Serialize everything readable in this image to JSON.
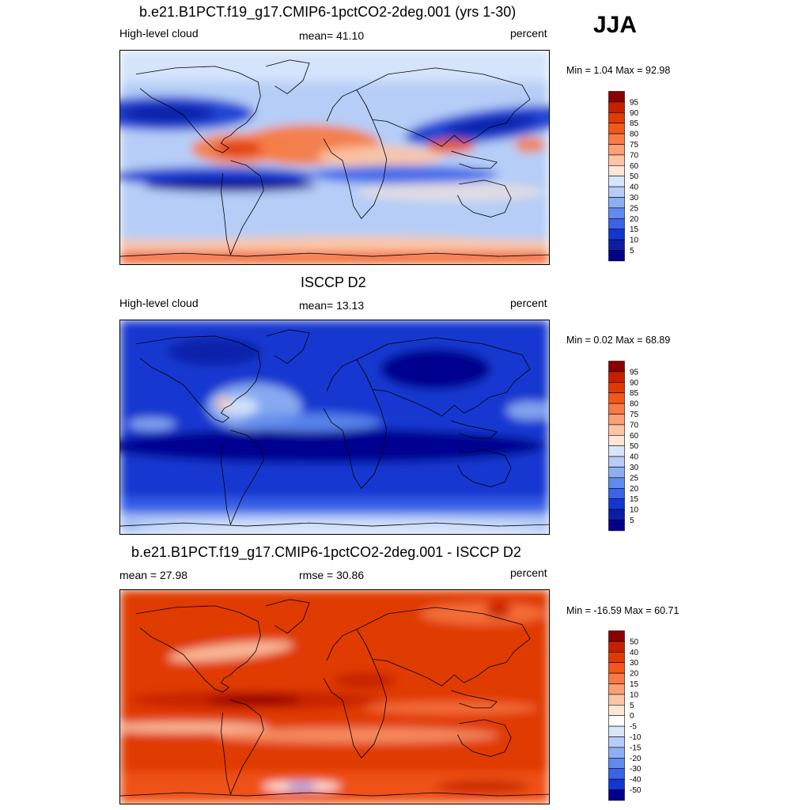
{
  "season": "JJA",
  "panels": [
    {
      "title": "b.e21.B1PCT.f19_g17.CMIP6-1pctCO2-2deg.001 (yrs 1-30)",
      "left": "High-level cloud",
      "center": "mean=  41.10",
      "right": "percent",
      "minmax": "Min =   1.04 Max =  92.98",
      "palette": "abs",
      "field": "model",
      "colorbar_labels": [
        "95",
        "90",
        "85",
        "80",
        "75",
        "70",
        "60",
        "50",
        "40",
        "30",
        "25",
        "20",
        "15",
        "10",
        "5"
      ]
    },
    {
      "title": "ISCCP D2",
      "left": "High-level cloud",
      "center": "mean=  13.13",
      "right": "percent",
      "minmax": "Min =   0.02 Max =  68.89",
      "palette": "abs",
      "field": "obs",
      "colorbar_labels": [
        "95",
        "90",
        "85",
        "80",
        "75",
        "70",
        "60",
        "50",
        "40",
        "30",
        "25",
        "20",
        "15",
        "10",
        "5"
      ]
    },
    {
      "title": "b.e21.B1PCT.f19_g17.CMIP6-1pctCO2-2deg.001 - ISCCP D2",
      "left": "mean =  27.98",
      "center": "rmse =  30.86",
      "right": "percent",
      "minmax": "Min = -16.59 Max =  60.71",
      "palette": "diff",
      "field": "diff",
      "colorbar_labels": [
        "50",
        "40",
        "30",
        "20",
        "15",
        "10",
        "5",
        "0",
        "-5",
        "-10",
        "-15",
        "-20",
        "-30",
        "-40",
        "-50"
      ]
    }
  ],
  "colors": {
    "abs": [
      "#8a0000",
      "#c42000",
      "#e03a00",
      "#f2581a",
      "#f77b45",
      "#fa9f76",
      "#fcc5a6",
      "#fde6d6",
      "#d8e6fb",
      "#b5cdf7",
      "#8daff2",
      "#5f8cec",
      "#3a63e8",
      "#1237d0",
      "#0a1fa6",
      "#00008a"
    ],
    "diff": [
      "#8a0000",
      "#c42000",
      "#e03a00",
      "#f2581a",
      "#f77b45",
      "#fa9f76",
      "#fcc5a6",
      "#fde6d6",
      "#ffffff",
      "#d8e6fb",
      "#b5cdf7",
      "#8daff2",
      "#5f8cec",
      "#3a63e8",
      "#1237d0",
      "#00008a"
    ]
  }
}
